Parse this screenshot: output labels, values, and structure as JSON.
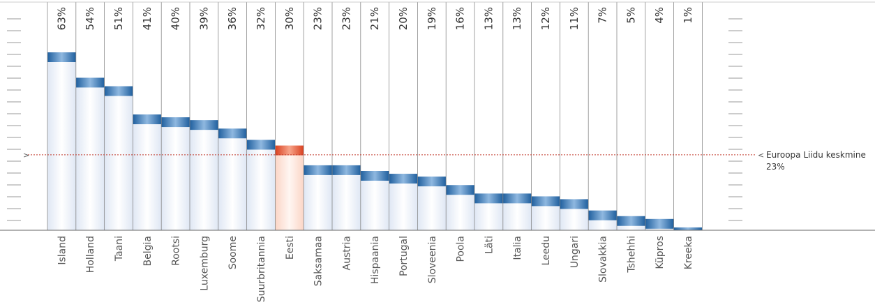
{
  "chart_data": {
    "type": "bar",
    "title": "",
    "xlabel": "",
    "ylabel": "",
    "categories": [
      "Island",
      "Holland",
      "Taani",
      "Belgia",
      "Rootsi",
      "Luxemburg",
      "Soome",
      "Suurbritannia",
      "Eesti",
      "Saksamaa",
      "Austria",
      "Hispaania",
      "Portugal",
      "Sloveenia",
      "Poola",
      "Läti",
      "Italia",
      "Leedu",
      "Ungari",
      "Slovakkia",
      "Tshehhi",
      "Küpros",
      "Kreeka"
    ],
    "values": [
      63,
      54,
      51,
      41,
      40,
      39,
      36,
      32,
      30,
      23,
      23,
      21,
      20,
      19,
      16,
      13,
      13,
      12,
      11,
      7,
      5,
      4,
      1
    ],
    "value_labels": [
      "63%",
      "54%",
      "51%",
      "41%",
      "40%",
      "39%",
      "36%",
      "32%",
      "30%",
      "23%",
      "23%",
      "21%",
      "20%",
      "19%",
      "16%",
      "13%",
      "13%",
      "12%",
      "11%",
      "7%",
      "5%",
      "4%",
      "1%"
    ],
    "highlight_category": "Eesti",
    "ylim": [
      0,
      63
    ],
    "reference_line": {
      "value": 23,
      "label": "Euroopa Liidu keskmine",
      "value_label": "23%",
      "left_marker": ">",
      "right_marker": "<"
    },
    "grid": false,
    "legend": "none",
    "colors": {
      "bar_cap": "#2e6fae",
      "bar_cap_highlight": "#e8533a",
      "bar_body": "#e9eef8",
      "bar_body_highlight": "#fde3d8",
      "reference_line": "#c0392b",
      "separators": "#888888",
      "axis": "#666666"
    }
  }
}
